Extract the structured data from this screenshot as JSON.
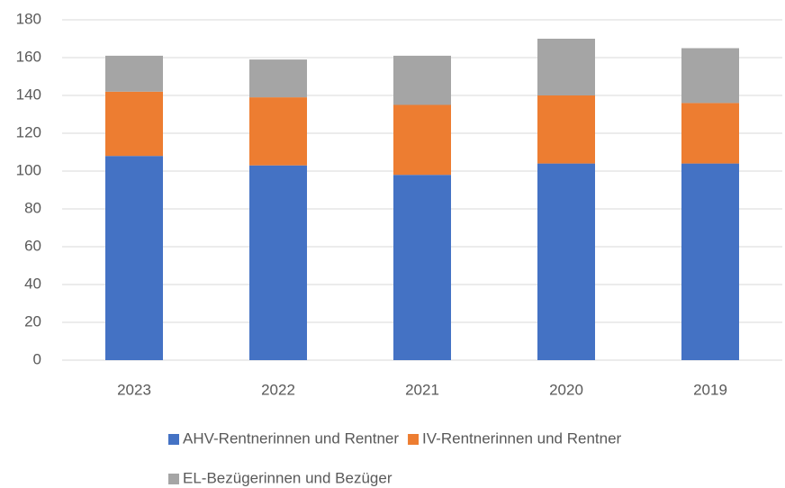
{
  "chart_data": {
    "type": "stacked_bar",
    "categories": [
      "2023",
      "2022",
      "2021",
      "2020",
      "2019"
    ],
    "series": [
      {
        "name": "AHV-Rentnerinnen und Rentner",
        "color": "#4472c4",
        "values": [
          108,
          103,
          98,
          104,
          104
        ]
      },
      {
        "name": "IV-Rentnerinnen und Rentner",
        "color": "#ed7d31",
        "values": [
          34,
          36,
          37,
          36,
          32
        ]
      },
      {
        "name": "EL-Bezügerinnen und Bezüger",
        "color": "#a5a5a5",
        "values": [
          19,
          20,
          26,
          30,
          29
        ]
      }
    ],
    "ylim": [
      0,
      180
    ],
    "yticks": [
      0,
      20,
      40,
      60,
      80,
      100,
      120,
      140,
      160,
      180
    ],
    "grid": true,
    "legend": "bottom"
  }
}
